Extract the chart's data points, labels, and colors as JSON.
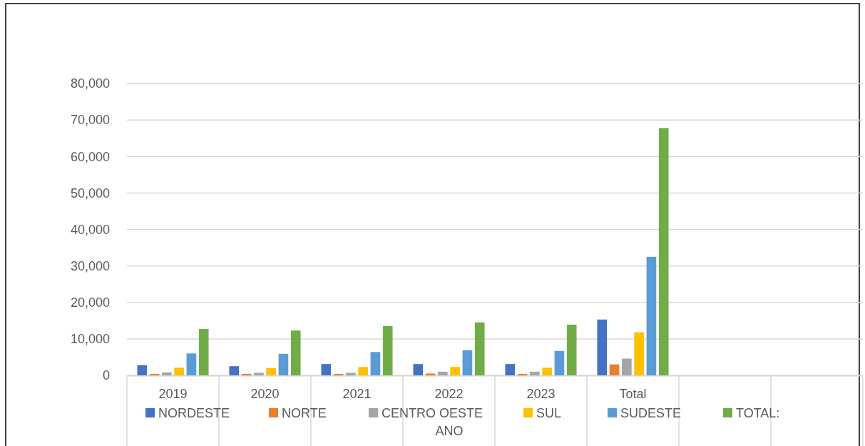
{
  "chart_data": {
    "type": "bar",
    "xlabel": "ANO",
    "categories": [
      "2019",
      "2020",
      "2021",
      "2022",
      "2023",
      "Total",
      null,
      null
    ],
    "series": [
      {
        "name": "NORDESTE",
        "color": "#4472c4",
        "values": [
          2800,
          2500,
          3100,
          3100,
          3100,
          15300,
          null,
          null
        ]
      },
      {
        "name": "NORTE",
        "color": "#ed7d31",
        "values": [
          400,
          400,
          400,
          500,
          400,
          3000,
          null,
          null
        ]
      },
      {
        "name": "CENTRO OESTE",
        "color": "#a5a5a5",
        "values": [
          800,
          700,
          700,
          1000,
          1000,
          4600,
          null,
          null
        ]
      },
      {
        "name": "SUL",
        "color": "#ffc000",
        "values": [
          2100,
          2000,
          2300,
          2300,
          2100,
          11800,
          null,
          null
        ]
      },
      {
        "name": "SUDESTE",
        "color": "#5b9bd5",
        "values": [
          6000,
          5900,
          6400,
          6900,
          6700,
          32500,
          null,
          null
        ]
      },
      {
        "name": "TOTAL:",
        "color": "#70ad47",
        "values": [
          12700,
          12300,
          13500,
          14500,
          13900,
          67800,
          null,
          null
        ]
      }
    ],
    "ylim": [
      0,
      80000
    ],
    "yticks": [
      {
        "value": 0,
        "label": "0"
      },
      {
        "value": 10000,
        "label": "10,000"
      },
      {
        "value": 20000,
        "label": "20,000"
      },
      {
        "value": 30000,
        "label": "30,000"
      },
      {
        "value": 40000,
        "label": "40,000"
      },
      {
        "value": 50000,
        "label": "50,000"
      },
      {
        "value": 60000,
        "label": "60,000"
      },
      {
        "value": 70000,
        "label": "70,000"
      },
      {
        "value": 80000,
        "label": "80,000"
      }
    ],
    "grid": "y",
    "legend": "bottom"
  }
}
